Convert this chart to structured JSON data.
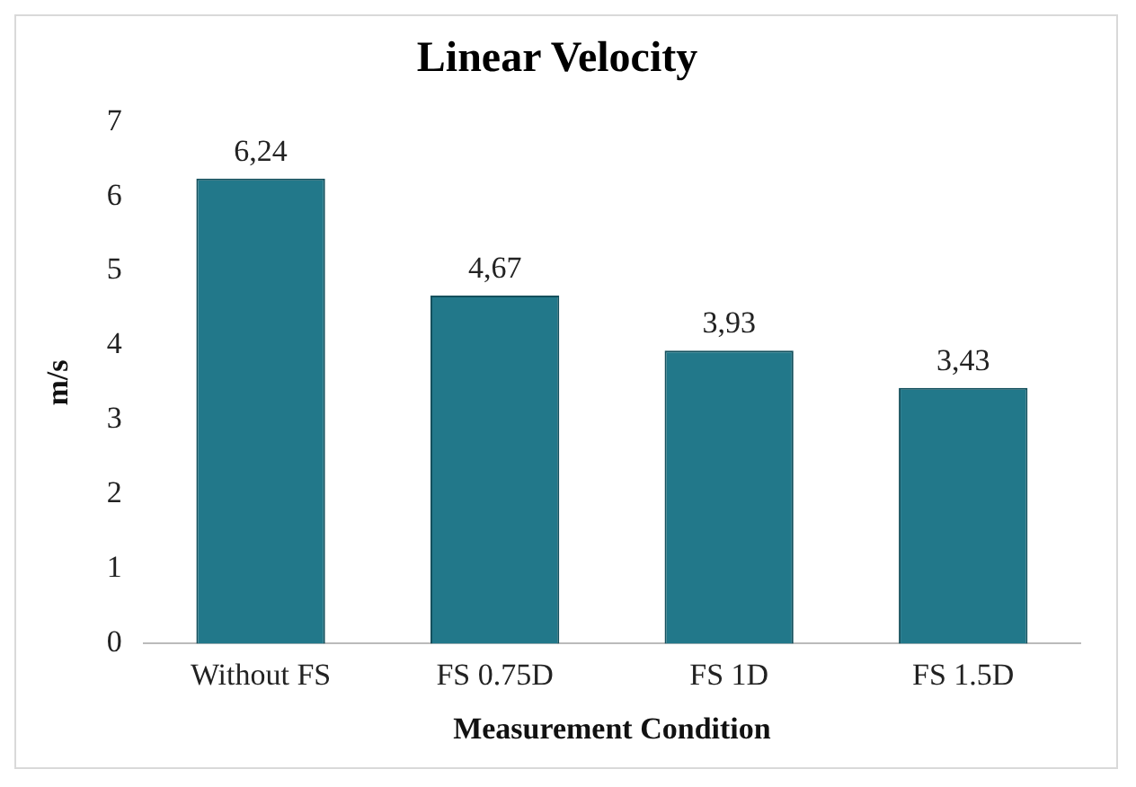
{
  "chart_data": {
    "type": "bar",
    "title": "Linear Velocity",
    "xlabel": "Measurement Condition",
    "ylabel": "m/s",
    "categories": [
      "Without FS",
      "FS 0.75D",
      "FS 1D",
      "FS 1.5D"
    ],
    "values": [
      6.24,
      4.67,
      3.93,
      3.43
    ],
    "value_labels": [
      "6,24",
      "4,67",
      "3,93",
      "3,43"
    ],
    "color": "#22788a",
    "ylim": [
      0,
      7
    ],
    "yticks": [
      0,
      1,
      2,
      3,
      4,
      5,
      6,
      7
    ],
    "grid": false,
    "legend": false
  }
}
